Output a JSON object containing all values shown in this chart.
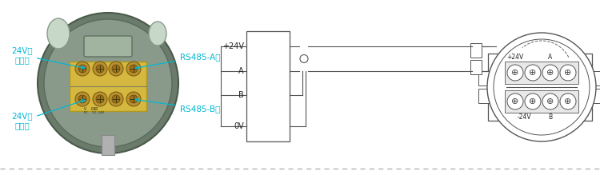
{
  "bg_color": "#ffffff",
  "line_color": "#555555",
  "text_color": "#00b8d4",
  "label1": "24V电\n源正极",
  "label2": "24V电\n源负极",
  "label3": "RS485-A极",
  "label4": "RS485-B极",
  "box_labels": [
    "+24V",
    "A",
    "B",
    "0V"
  ],
  "right_labels_top": [
    "+24V",
    "A"
  ],
  "right_labels_bot": [
    "-24V",
    "B"
  ]
}
